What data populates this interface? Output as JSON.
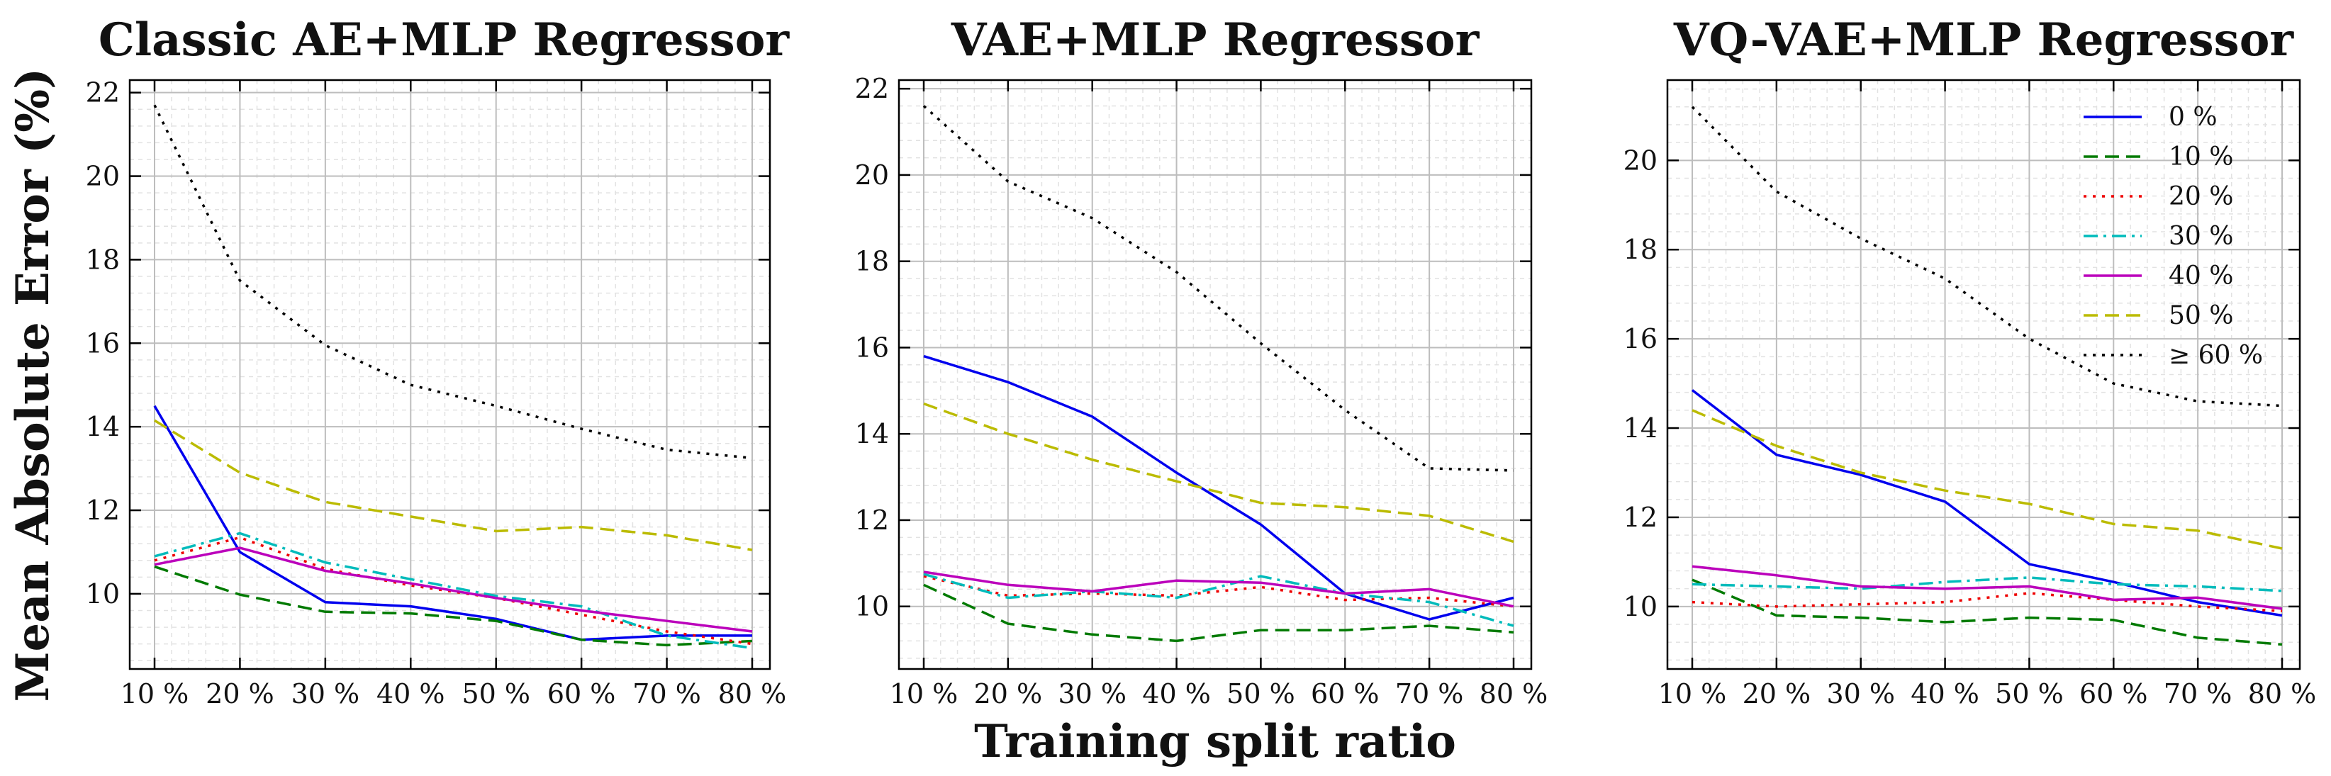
{
  "figure": {
    "ylabel": "Mean Absolute Error (%)",
    "xlabel": "Training split ratio"
  },
  "chart_data": [
    {
      "type": "line",
      "title": "Classic AE+MLP Regressor",
      "x": [
        "10 %",
        "20 %",
        "30 %",
        "40 %",
        "50 %",
        "60 %",
        "70 %",
        "80 %"
      ],
      "ylim": [
        8.2,
        22.3
      ],
      "yticks": [
        10,
        12,
        14,
        16,
        18,
        20,
        22
      ],
      "grid": true,
      "legend": "none",
      "series": [
        {
          "name": "0 %",
          "color": "#0000ee",
          "dash": "solid",
          "values": [
            14.5,
            11.0,
            9.8,
            9.7,
            9.4,
            8.9,
            9.0,
            9.0
          ]
        },
        {
          "name": "10 %",
          "color": "#007a00",
          "dash": "dashed",
          "values": [
            10.65,
            9.98,
            9.57,
            9.53,
            9.35,
            8.9,
            8.77,
            8.87
          ]
        },
        {
          "name": "20 %",
          "color": "#ee0000",
          "dash": "dotted",
          "values": [
            10.8,
            11.35,
            10.6,
            10.2,
            9.9,
            9.5,
            9.1,
            8.8
          ]
        },
        {
          "name": "30 %",
          "color": "#00bbbb",
          "dash": "dashdot",
          "values": [
            10.9,
            11.45,
            10.75,
            10.35,
            9.95,
            9.7,
            9.0,
            8.7
          ]
        },
        {
          "name": "40 %",
          "color": "#bb00bb",
          "dash": "solid",
          "values": [
            10.7,
            11.1,
            10.55,
            10.25,
            9.9,
            9.6,
            9.35,
            9.1
          ]
        },
        {
          "name": "50 %",
          "color": "#bbbb00",
          "dash": "dashed",
          "values": [
            14.15,
            12.9,
            12.2,
            11.85,
            11.5,
            11.6,
            11.4,
            11.05
          ]
        },
        {
          "name": "≥ 60 %",
          "color": "#000000",
          "dash": "dotted",
          "values": [
            21.7,
            17.5,
            15.95,
            15.0,
            14.5,
            13.95,
            13.45,
            13.25
          ]
        }
      ]
    },
    {
      "type": "line",
      "title": "VAE+MLP Regressor",
      "x": [
        "10 %",
        "20 %",
        "30 %",
        "40 %",
        "50 %",
        "60 %",
        "70 %",
        "80 %"
      ],
      "ylim": [
        8.55,
        22.2
      ],
      "yticks": [
        10,
        12,
        14,
        16,
        18,
        20,
        22
      ],
      "grid": true,
      "legend": "none",
      "series": [
        {
          "name": "0 %",
          "color": "#0000ee",
          "dash": "solid",
          "values": [
            15.8,
            15.2,
            14.4,
            13.1,
            11.9,
            10.3,
            9.7,
            10.2
          ]
        },
        {
          "name": "10 %",
          "color": "#007a00",
          "dash": "dashed",
          "values": [
            10.5,
            9.6,
            9.35,
            9.2,
            9.45,
            9.45,
            9.55,
            9.4
          ]
        },
        {
          "name": "20 %",
          "color": "#ee0000",
          "dash": "dotted",
          "values": [
            10.7,
            10.25,
            10.3,
            10.25,
            10.45,
            10.15,
            10.2,
            10.0
          ]
        },
        {
          "name": "30 %",
          "color": "#00bbbb",
          "dash": "dashdot",
          "values": [
            10.75,
            10.2,
            10.35,
            10.2,
            10.7,
            10.3,
            10.1,
            9.55
          ]
        },
        {
          "name": "40 %",
          "color": "#bb00bb",
          "dash": "solid",
          "values": [
            10.8,
            10.5,
            10.35,
            10.6,
            10.55,
            10.3,
            10.4,
            10.0
          ]
        },
        {
          "name": "50 %",
          "color": "#bbbb00",
          "dash": "dashed",
          "values": [
            14.7,
            14.0,
            13.4,
            12.9,
            12.4,
            12.3,
            12.1,
            11.5
          ]
        },
        {
          "name": "≥ 60 %",
          "color": "#000000",
          "dash": "dotted",
          "values": [
            21.6,
            19.85,
            19.0,
            17.75,
            16.1,
            14.55,
            13.2,
            13.15
          ]
        }
      ]
    },
    {
      "type": "line",
      "title": "VQ-VAE+MLP Regressor",
      "x": [
        "10 %",
        "20 %",
        "30 %",
        "40 %",
        "50 %",
        "60 %",
        "70 %",
        "80 %"
      ],
      "ylim": [
        8.6,
        21.8
      ],
      "yticks": [
        10,
        12,
        14,
        16,
        18,
        20
      ],
      "grid": true,
      "legend": "top-right",
      "series": [
        {
          "name": "0 %",
          "color": "#0000ee",
          "dash": "solid",
          "values": [
            14.85,
            13.4,
            12.95,
            12.35,
            10.95,
            10.55,
            10.1,
            9.8
          ]
        },
        {
          "name": "10 %",
          "color": "#007a00",
          "dash": "dashed",
          "values": [
            10.6,
            9.8,
            9.75,
            9.65,
            9.75,
            9.7,
            9.3,
            9.15
          ]
        },
        {
          "name": "20 %",
          "color": "#ee0000",
          "dash": "dotted",
          "values": [
            10.1,
            10.0,
            10.05,
            10.1,
            10.3,
            10.15,
            10.0,
            9.9
          ]
        },
        {
          "name": "30 %",
          "color": "#00bbbb",
          "dash": "dashdot",
          "values": [
            10.5,
            10.45,
            10.4,
            10.55,
            10.65,
            10.5,
            10.45,
            10.35
          ]
        },
        {
          "name": "40 %",
          "color": "#bb00bb",
          "dash": "solid",
          "values": [
            10.9,
            10.7,
            10.45,
            10.4,
            10.45,
            10.15,
            10.2,
            9.95
          ]
        },
        {
          "name": "50 %",
          "color": "#bbbb00",
          "dash": "dashed",
          "values": [
            14.4,
            13.6,
            13.0,
            12.6,
            12.3,
            11.85,
            11.7,
            11.3
          ]
        },
        {
          "name": "≥ 60 %",
          "color": "#000000",
          "dash": "dotted",
          "values": [
            21.2,
            19.3,
            18.25,
            17.35,
            16.0,
            15.0,
            14.6,
            14.5
          ]
        }
      ]
    }
  ]
}
